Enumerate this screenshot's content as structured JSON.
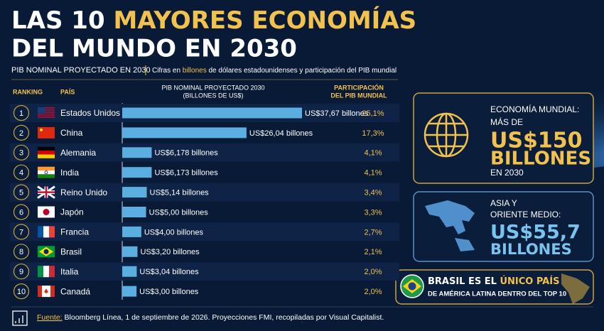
{
  "title": {
    "line1_plain": "LAS 10 ",
    "line1_accent": "MAYORES ECONOMÍAS",
    "line2": "DEL MUNDO EN 2030"
  },
  "subtitle": "PIB NOMINAL PROYECTADO EN 2030",
  "note": {
    "before": "Cifras en ",
    "accent": "billones",
    "after": " de dólares estadounidenses y participación del PIB mundial"
  },
  "headers": {
    "ranking": "RANKING",
    "country": "PAÍS",
    "gdp_1": "PIB NOMINAL PROYECTADO 2030",
    "gdp_2": "(BILLONES DE US$)",
    "share_1": "PARTICIPACIÓN",
    "share_2": "DEL PIB MUNDIAL"
  },
  "chart_data": {
    "type": "bar",
    "orientation": "horizontal",
    "color": "#5aaee0",
    "ranks": [
      1,
      2,
      3,
      4,
      5,
      6,
      7,
      8,
      9,
      10
    ],
    "categories": [
      "Estados Unidos",
      "China",
      "Alemania",
      "India",
      "Reino Unido",
      "Japón",
      "Francia",
      "Brasil",
      "Italia",
      "Canadá"
    ],
    "values": [
      37.67,
      26.04,
      6.178,
      6.173,
      5.14,
      5.0,
      4.0,
      3.2,
      3.04,
      3.0
    ],
    "value_labels": [
      "US$37,67 billones",
      "US$26,04 billones",
      "US$6,178 billones",
      "US$6,173 billones",
      "US$5,14 billones",
      "US$5,00 billones",
      "US$4,00 billones",
      "US$3,20 billones",
      "US$3,04 billones",
      "US$3,00 billones"
    ],
    "shares": [
      25.1,
      17.3,
      4.1,
      4.1,
      3.4,
      3.3,
      2.7,
      2.1,
      2.0,
      2.0
    ],
    "share_labels": [
      "25,1%",
      "17,3%",
      "4,1%",
      "4,1%",
      "3,4%",
      "3,3%",
      "2,7%",
      "2,1%",
      "2,0%",
      "2,0%"
    ]
  },
  "panels": {
    "world": {
      "l1": "ECONOMÍA MUNDIAL:",
      "l2": "MÁS DE",
      "big": "US$150",
      "big2": "BILLONES",
      "l3": "EN 2030"
    },
    "asia": {
      "l1": "ASIA Y",
      "l2": "ORIENTE MEDIO:",
      "big": "US$55,7",
      "big2": "BILLONES"
    },
    "brazil": {
      "l1_plain": "BRASIL ES EL ",
      "l1_accent": "ÚNICO PAÍS",
      "l2": "DE AMÉRICA LATINA DENTRO DEL TOP 10"
    }
  },
  "source": {
    "label": "Fuente:",
    "text": " Bloomberg Línea, 1 de septiembre de 2026.  Proyecciones FMI, recopiladas por Visual Capitalist."
  }
}
